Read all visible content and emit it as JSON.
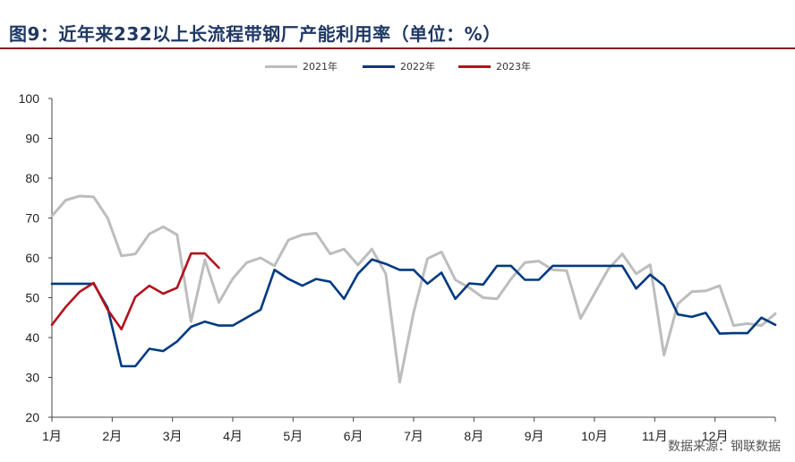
{
  "title": "图9：近年来232以上长流程带钢厂产能利用率（单位：%）",
  "source": "数据来源：钢联数据",
  "colors": {
    "title": "#1f3864",
    "rule": "#8b1a1a",
    "s2021": "#bdbdbd",
    "s2022": "#003a80",
    "s2023": "#b3121c"
  },
  "chart_data": {
    "type": "line",
    "title": "图9：近年来232以上长流程带钢厂产能利用率（单位：%）",
    "xlabel": "",
    "ylabel": "",
    "x_tick_labels": [
      "1月",
      "2月",
      "3月",
      "4月",
      "5月",
      "6月",
      "7月",
      "8月",
      "9月",
      "10月",
      "11月",
      "12月"
    ],
    "y_tick_labels": [
      "20",
      "30",
      "40",
      "50",
      "60",
      "70",
      "80",
      "90",
      "100"
    ],
    "ylim": [
      20,
      100
    ],
    "xlim": [
      1,
      53
    ],
    "grid": false,
    "legend_position": "top-center",
    "series": [
      {
        "name": "2021年",
        "color": "#bdbdbd",
        "x": [
          1,
          2,
          3,
          4,
          5,
          6,
          7,
          8,
          9,
          10,
          11,
          12,
          13,
          14,
          15,
          16,
          17,
          18,
          19,
          20,
          21,
          22,
          23,
          24,
          25,
          26,
          27,
          28,
          29,
          30,
          31,
          32,
          33,
          34,
          35,
          36,
          37,
          38,
          39,
          40,
          41,
          42,
          43,
          44,
          45,
          46,
          47,
          48,
          49,
          50,
          51,
          52,
          53
        ],
        "values": [
          70.5,
          74.5,
          75.5,
          75.3,
          70,
          60.5,
          61,
          66,
          67.8,
          65.8,
          44,
          59.5,
          48.8,
          54.8,
          58.8,
          60,
          58,
          64.5,
          65.8,
          66.2,
          61,
          62.2,
          58.2,
          62.2,
          56,
          28.8,
          46.3,
          59.8,
          61.5,
          54.5,
          52.5,
          50,
          49.7,
          54.7,
          58.8,
          59.2,
          57,
          56.8,
          44.8,
          51,
          57.2,
          61,
          56,
          58.3,
          35.6,
          48.5,
          51.5,
          51.7,
          53,
          43,
          43.5,
          43,
          46
        ]
      },
      {
        "name": "2022年",
        "color": "#003a80",
        "x": [
          1,
          2,
          3,
          4,
          5,
          6,
          7,
          8,
          9,
          10,
          11,
          12,
          13,
          14,
          15,
          16,
          17,
          18,
          19,
          20,
          21,
          22,
          23,
          24,
          25,
          26,
          27,
          28,
          29,
          30,
          31,
          32,
          33,
          34,
          35,
          36,
          37,
          38,
          39,
          40,
          41,
          42,
          43,
          44,
          45,
          46,
          47,
          48,
          49,
          50,
          51,
          52,
          53
        ],
        "values": [
          53.5,
          53.5,
          53.5,
          53.5,
          47.5,
          32.8,
          32.8,
          37.2,
          36.6,
          39,
          42.7,
          44,
          43,
          43,
          45,
          47,
          57,
          54.7,
          53,
          54.7,
          54,
          49.7,
          56,
          59.6,
          58.5,
          57,
          57,
          53.5,
          56.3,
          49.7,
          53.6,
          53.3,
          58,
          58,
          54.5,
          54.5,
          58,
          58,
          58,
          58,
          58,
          58,
          52.3,
          55.8,
          53,
          45.8,
          45.2,
          46.2,
          41,
          41.1,
          41.1,
          45,
          43.2
        ]
      },
      {
        "name": "2023年",
        "color": "#b3121c",
        "x": [
          1,
          2,
          3,
          4,
          5,
          6,
          7,
          8,
          9,
          10,
          11,
          12,
          13
        ],
        "values": [
          43.2,
          47.7,
          51.5,
          53.7,
          47,
          42.1,
          50.2,
          53,
          51,
          52.5,
          61.1,
          61.1,
          57.5
        ]
      }
    ]
  }
}
